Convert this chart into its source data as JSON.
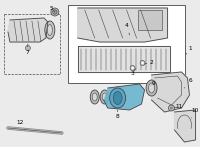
{
  "bg_color": "#ebebeb",
  "line_color": "#444444",
  "highlight_color": "#6cb4d0",
  "white": "#ffffff",
  "gray_light": "#d8d8d8",
  "gray_mid": "#bbbbbb"
}
